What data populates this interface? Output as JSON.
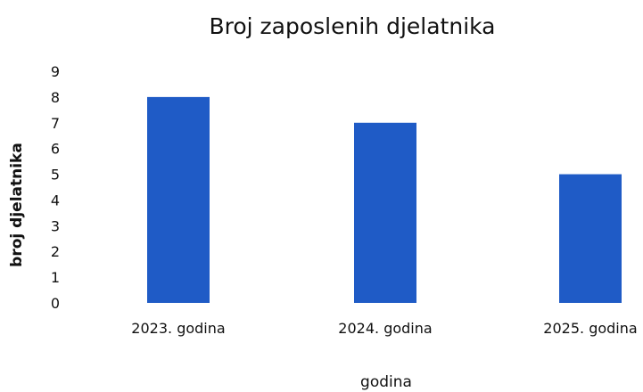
{
  "chart_data": {
    "type": "bar",
    "title": "Broj zaposlenih djelatnika",
    "xlabel": "godina",
    "ylabel": "broj djelatnika",
    "categories": [
      "2023. godina",
      "2024. godina",
      "2025. godina"
    ],
    "values": [
      8,
      7,
      5
    ],
    "ylim": [
      0,
      9
    ],
    "yticks": [
      "0",
      "1",
      "2",
      "3",
      "4",
      "5",
      "6",
      "7",
      "8",
      "9"
    ],
    "grid": false,
    "legend": "none",
    "bar_color": "#1f5bc6"
  }
}
